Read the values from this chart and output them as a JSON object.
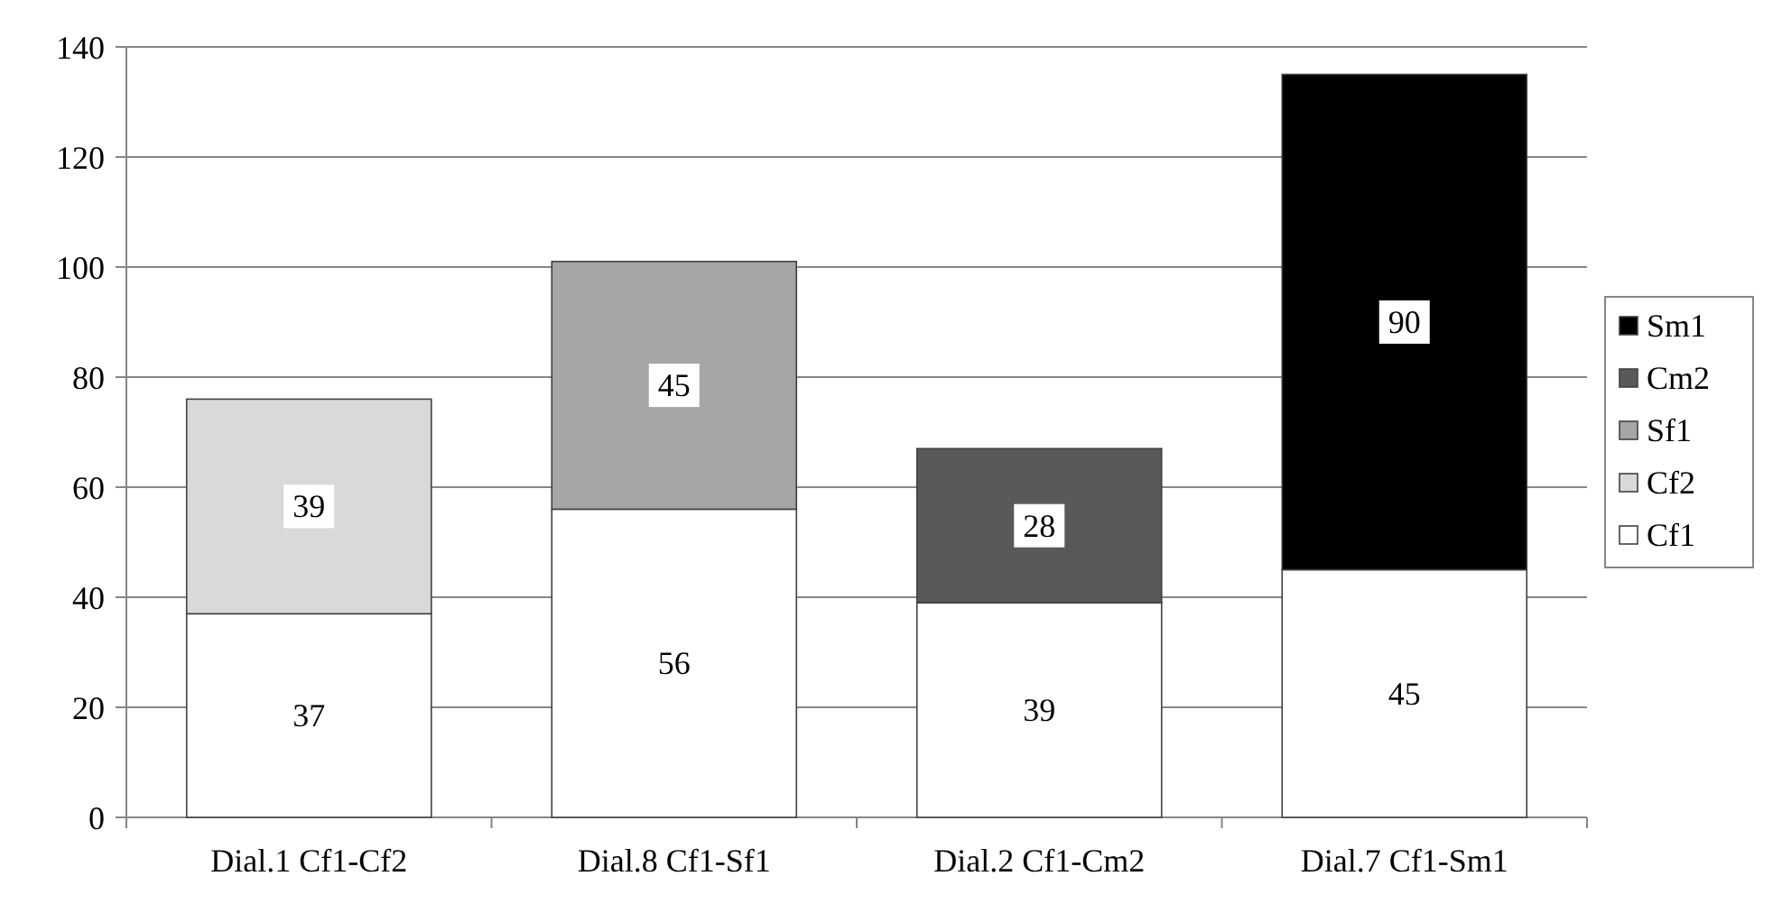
{
  "chart_data": {
    "type": "bar",
    "stacked": true,
    "categories": [
      "Dial.1 Cf1-Cf2",
      "Dial.8 Cf1-Sf1",
      "Dial.2 Cf1-Cm2",
      "Dial.7 Cf1-Sm1"
    ],
    "series": [
      {
        "name": "Cf1",
        "color": "#ffffff",
        "values": [
          37,
          56,
          39,
          45
        ]
      },
      {
        "name": "Cf2",
        "color": "#d9d9d9",
        "values": [
          39,
          null,
          null,
          null
        ]
      },
      {
        "name": "Sf1",
        "color": "#a6a6a6",
        "values": [
          null,
          45,
          null,
          null
        ]
      },
      {
        "name": "Cm2",
        "color": "#595959",
        "values": [
          null,
          null,
          28,
          null
        ]
      },
      {
        "name": "Sm1",
        "color": "#000000",
        "values": [
          null,
          null,
          null,
          90
        ]
      }
    ],
    "ylim": [
      0,
      140
    ],
    "yticks": [
      0,
      20,
      40,
      60,
      80,
      100,
      120,
      140
    ],
    "grid": "y",
    "legend": "right",
    "data_labels": true
  }
}
